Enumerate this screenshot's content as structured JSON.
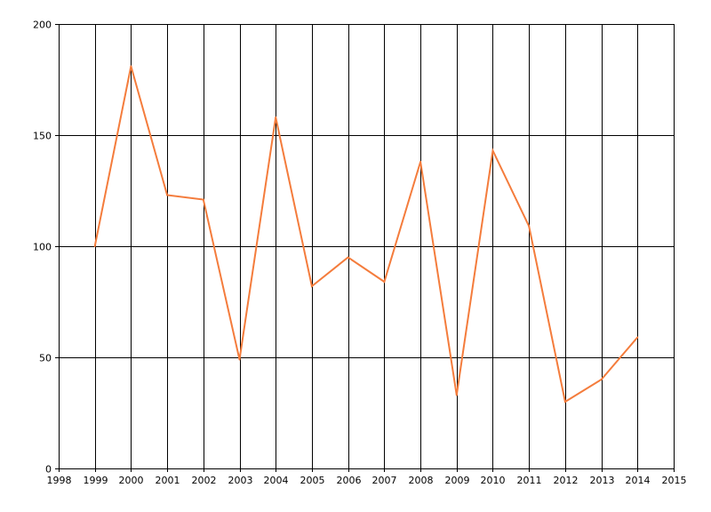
{
  "chart_data": {
    "type": "line",
    "title": "",
    "xlabel": "",
    "ylabel": "",
    "x": [
      1999,
      2000,
      2001,
      2002,
      2003,
      2004,
      2005,
      2006,
      2007,
      2008,
      2009,
      2010,
      2011,
      2012,
      2013,
      2014
    ],
    "series": [
      {
        "values": [
          100,
          181,
          123,
          121,
          49,
          158,
          82,
          95,
          84,
          138,
          33,
          143,
          109,
          30,
          40,
          59
        ],
        "color": "#f47c3c"
      }
    ],
    "xlim": [
      1998,
      2015
    ],
    "ylim": [
      0,
      200
    ],
    "x_ticks": [
      "1998",
      "1999",
      "2000",
      "2001",
      "2002",
      "2003",
      "2004",
      "2005",
      "2006",
      "2007",
      "2008",
      "2009",
      "2010",
      "2011",
      "2012",
      "2013",
      "2014",
      "2015"
    ],
    "y_ticks": [
      "0",
      "50",
      "100",
      "150",
      "200"
    ],
    "grid": true,
    "legend": "none",
    "grid_color": "#000000",
    "axis_color": "#000000"
  }
}
